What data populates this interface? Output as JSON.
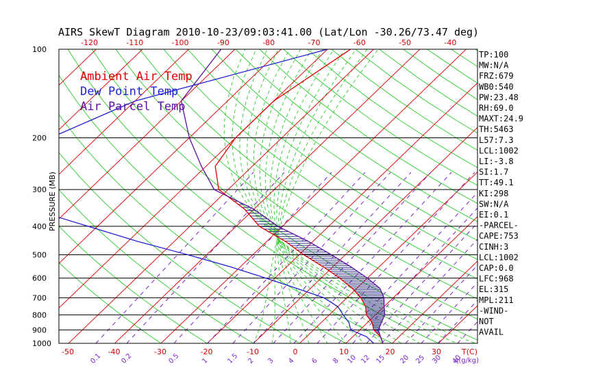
{
  "chart_data": {
    "type": "line",
    "title": "AIRS SkewT Diagram 2010-10-23/09:03:41.00 (Lat/Lon -30.26/73.47 deg)",
    "ylabel": "PRESSURE (MB)",
    "xlabel_right": "T(C)",
    "mixing_unit_label": "q(g/kg)",
    "pressure_ticks": [
      100,
      200,
      300,
      400,
      500,
      600,
      700,
      800,
      900,
      1000
    ],
    "top_temp_ticks": [
      -120,
      -110,
      -100,
      -90,
      -80,
      -70,
      -60,
      -50,
      -40
    ],
    "bottom_temp_ticks": [
      -50,
      -40,
      -30,
      -20,
      -10,
      0,
      10,
      20,
      30
    ],
    "mixing_ratio_labels": [
      "0.1",
      "0.2",
      "0.5",
      "1",
      "1.5",
      "2",
      "3",
      "4",
      "6",
      "8",
      "10",
      "12",
      "15",
      "20",
      "25",
      "30",
      "40"
    ],
    "legend": [
      {
        "label": "Ambient Air Temp",
        "color": "#e00000"
      },
      {
        "label": "Dew Point Temp",
        "color": "#1f1fd6"
      },
      {
        "label": "Air Parcel Temp",
        "color": "#5a0fa0"
      }
    ],
    "series": [
      {
        "name": "Ambient Air Temp",
        "color": "#e00000",
        "points": [
          [
            100,
            -55
          ],
          [
            150,
            -60
          ],
          [
            200,
            -60
          ],
          [
            250,
            -58
          ],
          [
            300,
            -52
          ],
          [
            350,
            -42
          ],
          [
            400,
            -35
          ],
          [
            450,
            -26
          ],
          [
            500,
            -19
          ],
          [
            550,
            -12
          ],
          [
            600,
            -6
          ],
          [
            650,
            -1
          ],
          [
            700,
            3
          ],
          [
            750,
            6
          ],
          [
            800,
            8
          ],
          [
            850,
            11
          ],
          [
            900,
            13
          ],
          [
            950,
            16
          ],
          [
            1000,
            18
          ]
        ]
      },
      {
        "name": "Dew Point Temp",
        "color": "#1f1fd6",
        "points": [
          [
            100,
            -60
          ],
          [
            150,
            -90
          ],
          [
            200,
            -100
          ],
          [
            250,
            -106
          ],
          [
            300,
            -104
          ],
          [
            350,
            -88
          ],
          [
            400,
            -72
          ],
          [
            450,
            -58
          ],
          [
            500,
            -44
          ],
          [
            550,
            -32
          ],
          [
            600,
            -22
          ],
          [
            650,
            -13
          ],
          [
            700,
            -5
          ],
          [
            750,
            0
          ],
          [
            800,
            3
          ],
          [
            850,
            6
          ],
          [
            900,
            8
          ],
          [
            950,
            13
          ],
          [
            1000,
            16
          ]
        ]
      },
      {
        "name": "Air Parcel Temp",
        "color": "#5a0fa0",
        "points": [
          [
            100,
            -83
          ],
          [
            150,
            -80
          ],
          [
            200,
            -70
          ],
          [
            250,
            -61
          ],
          [
            300,
            -53
          ],
          [
            350,
            -40
          ],
          [
            400,
            -31
          ],
          [
            450,
            -21
          ],
          [
            500,
            -13
          ],
          [
            550,
            -6
          ],
          [
            600,
            0
          ],
          [
            650,
            5
          ],
          [
            700,
            8
          ],
          [
            750,
            10
          ],
          [
            800,
            12
          ],
          [
            850,
            13
          ],
          [
            900,
            14
          ],
          [
            950,
            16
          ],
          [
            1000,
            18
          ]
        ]
      }
    ],
    "ylim": [
      1000,
      100
    ],
    "grid": true
  },
  "indices": [
    "TP:100",
    "MW:N/A",
    "FRZ:679",
    "WB0:540",
    "PW:23.48",
    "RH:69.0",
    "MAXT:24.9",
    "TH:5463",
    "L57:7.3",
    "LCL:1002",
    "LI:-3.8",
    "SI:1.7",
    "TT:49.1",
    "KI:298",
    "SW:N/A",
    "EI:0.1",
    "-PARCEL-",
    "CAPE:753",
    "CINH:3",
    "LCL:1002",
    "CAP:0.0",
    "LFC:968",
    "EL:315",
    "MPL:211",
    "-WIND-",
    "NOT",
    "AVAIL"
  ]
}
